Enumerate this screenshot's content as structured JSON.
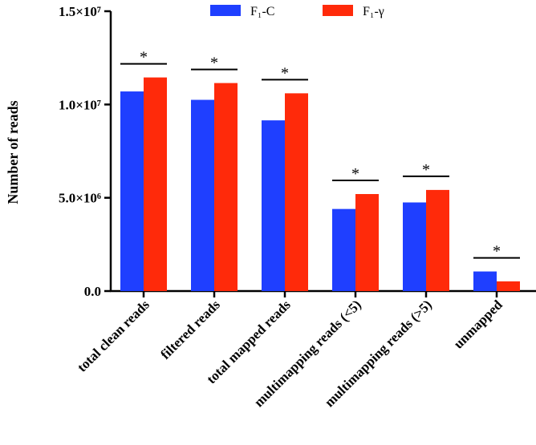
{
  "chart_data": {
    "type": "bar",
    "ylabel": "Number of reads",
    "xlabel": "",
    "ylim": [
      0,
      15000000
    ],
    "yticks": [
      {
        "value": 0,
        "label": "0.0"
      },
      {
        "value": 5000000,
        "label": "5.0×10⁶"
      },
      {
        "value": 10000000,
        "label": "1.0×10⁷"
      },
      {
        "value": 15000000,
        "label": "1.5×10⁷"
      }
    ],
    "categories": [
      "total clean reads",
      "filtered reads",
      "total mapped reads",
      "multimapping reads (<5)",
      "multimapping reads (>5)",
      "unmapped"
    ],
    "series": [
      {
        "name": "F₁-C",
        "color": "#1f3fff",
        "values": [
          10700000,
          10250000,
          9150000,
          4400000,
          4750000,
          1050000
        ]
      },
      {
        "name": "F₁-γ",
        "color": "#ff2a0a",
        "values": [
          11450000,
          11150000,
          10600000,
          5200000,
          5420000,
          520000
        ]
      }
    ],
    "significance": [
      "*",
      "*",
      "*",
      "*",
      "*",
      "*"
    ],
    "legend_position": "top"
  }
}
